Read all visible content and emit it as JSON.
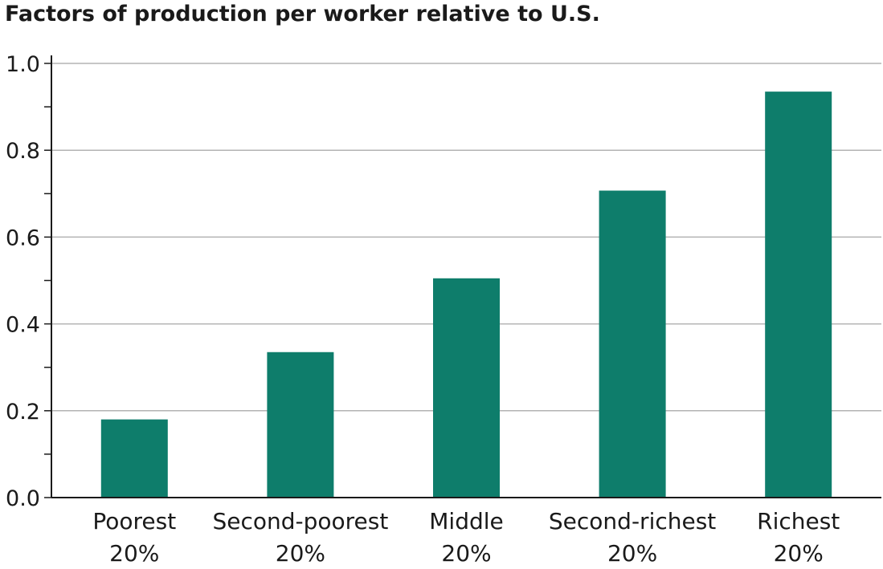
{
  "chart_data": {
    "type": "bar",
    "title": "Factors of production per worker relative to U.S.",
    "xlabel": "",
    "ylabel": "",
    "categories": [
      [
        "Poorest",
        "20%"
      ],
      [
        "Second-poorest",
        "20%"
      ],
      [
        "Middle",
        "20%"
      ],
      [
        "Second-richest",
        "20%"
      ],
      [
        "Richest",
        "20%"
      ]
    ],
    "values": [
      0.18,
      0.335,
      0.505,
      0.707,
      0.935
    ],
    "ylim": [
      0,
      1.0
    ],
    "yticks": [
      "0.0",
      "0.2",
      "0.4",
      "0.6",
      "0.8",
      "1.0"
    ],
    "grid": true,
    "legend": "none",
    "bar_color": "#0e7d6b",
    "grid_color": "#b3b3b3",
    "axis_color": "#1a1a1a"
  }
}
